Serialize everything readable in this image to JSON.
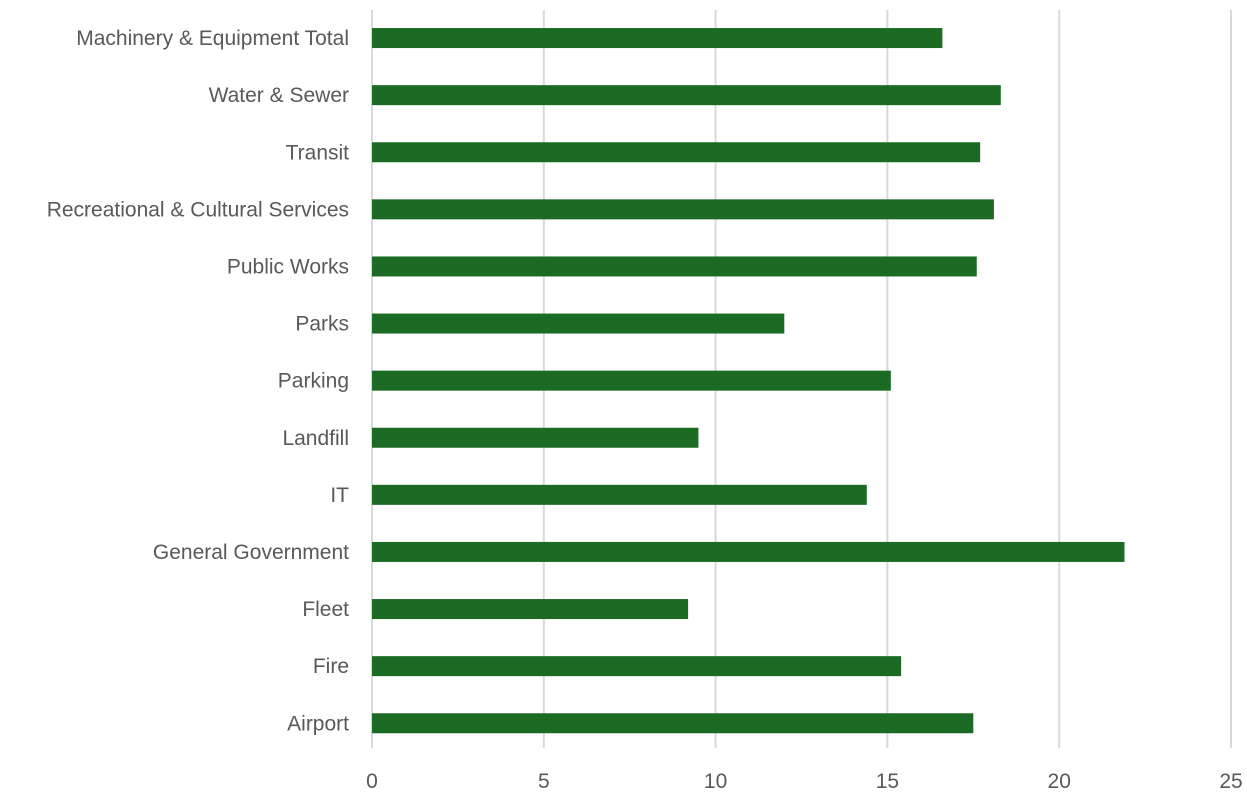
{
  "chart_data": {
    "type": "bar",
    "orientation": "horizontal",
    "title": "",
    "xlabel": "",
    "ylabel": "",
    "xlim": [
      0,
      25
    ],
    "x_ticks": [
      0,
      5,
      10,
      15,
      20,
      25
    ],
    "grid": "vertical",
    "legend": "none",
    "bar_color": "#1b6b25",
    "grid_color": "#d9d9d9",
    "text_color": "#595959",
    "categories": [
      "Machinery & Equipment Total",
      "Water & Sewer",
      "Transit",
      "Recreational & Cultural Services",
      "Public Works",
      "Parks",
      "Parking",
      "Landfill",
      "IT",
      "General Government",
      "Fleet",
      "Fire",
      "Airport"
    ],
    "values": [
      16.6,
      18.3,
      17.7,
      18.1,
      17.6,
      12.0,
      15.1,
      9.5,
      14.4,
      21.9,
      9.2,
      15.4,
      17.5
    ]
  }
}
